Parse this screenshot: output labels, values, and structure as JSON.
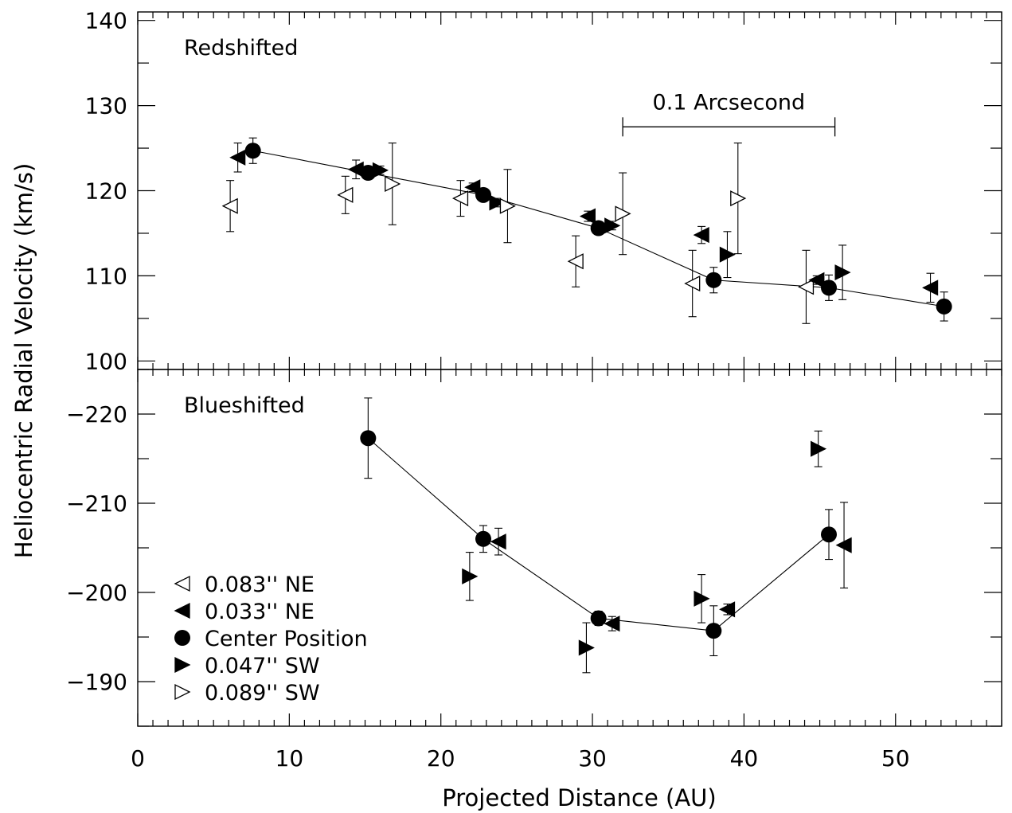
{
  "chart_data": {
    "type": "scatter",
    "xlabel": "Projected Distance (AU)",
    "ylabel": "Heliocentric Radial Velocity (km/s)",
    "xlim": [
      0,
      57
    ],
    "x_ticks": [
      "0",
      "10",
      "20",
      "30",
      "40",
      "50"
    ],
    "legend_placement": "lower-left of blueshifted panel",
    "legend": [
      {
        "marker": "open-left-triangle",
        "label": "0.083'' NE"
      },
      {
        "marker": "filled-left-triangle",
        "label": "0.033'' NE"
      },
      {
        "marker": "filled-circle",
        "label": "Center Position"
      },
      {
        "marker": "filled-right-triangle",
        "label": "0.047'' SW"
      },
      {
        "marker": "open-right-triangle",
        "label": "0.089'' SW"
      }
    ],
    "panels": [
      {
        "name": "Redshifted",
        "ylim": [
          99,
          141
        ],
        "y_ticks": [
          "100",
          "110",
          "120",
          "130",
          "140"
        ],
        "scale_bar": {
          "label": "0.1 Arcsecond",
          "x": [
            32,
            46
          ],
          "y": 127.5
        },
        "connected_series": "center",
        "series": [
          {
            "key": "ne083",
            "marker": "open-left-triangle",
            "points": [
              [
                6.1,
                118.2,
                3.0
              ],
              [
                13.7,
                119.5,
                2.2
              ],
              [
                21.3,
                119.1,
                2.1
              ],
              [
                28.9,
                111.7,
                3.0
              ],
              [
                36.6,
                109.1,
                3.9
              ],
              [
                44.1,
                108.7,
                4.3
              ]
            ]
          },
          {
            "key": "ne033",
            "marker": "filled-left-triangle",
            "points": [
              [
                6.6,
                123.9,
                1.7
              ],
              [
                14.4,
                122.5,
                1.1
              ],
              [
                22.1,
                120.4,
                0.5
              ],
              [
                29.7,
                117.0,
                0.6
              ],
              [
                37.2,
                114.8,
                1.0
              ],
              [
                44.8,
                109.5,
                0.5
              ],
              [
                52.3,
                108.6,
                1.7
              ]
            ]
          },
          {
            "key": "center",
            "marker": "filled-circle",
            "points": [
              [
                7.6,
                124.7,
                1.5
              ],
              [
                15.2,
                122.1,
                0.5
              ],
              [
                22.8,
                119.5,
                0.5
              ],
              [
                30.4,
                115.6,
                0.7
              ],
              [
                38.0,
                109.5,
                1.5
              ],
              [
                45.6,
                108.6,
                1.5
              ],
              [
                53.2,
                106.4,
                1.7
              ]
            ]
          },
          {
            "key": "sw047",
            "marker": "filled-right-triangle",
            "points": [
              [
                16.0,
                122.4,
                0.5
              ],
              [
                23.7,
                118.6,
                0.5
              ],
              [
                31.3,
                115.9,
                0.5
              ],
              [
                38.9,
                112.5,
                2.7
              ],
              [
                46.5,
                110.4,
                3.2
              ]
            ]
          },
          {
            "key": "sw089",
            "marker": "open-right-triangle",
            "points": [
              [
                16.8,
                120.8,
                4.8
              ],
              [
                24.4,
                118.2,
                4.3
              ],
              [
                32.0,
                117.3,
                4.8
              ],
              [
                39.6,
                119.1,
                6.5
              ]
            ]
          }
        ]
      },
      {
        "name": "Blueshifted",
        "ylim": [
          -185,
          -225
        ],
        "y_ticks": [
          "-220",
          "-210",
          "-200",
          "-190"
        ],
        "connected_series": "center",
        "series": [
          {
            "key": "ne033",
            "marker": "filled-left-triangle",
            "points": [
              [
                23.8,
                -205.7,
                1.5
              ],
              [
                31.3,
                -196.5,
                0.8
              ],
              [
                38.9,
                -198.1,
                0.6
              ],
              [
                46.6,
                -205.3,
                4.8
              ]
            ]
          },
          {
            "key": "center",
            "marker": "filled-circle",
            "points": [
              [
                15.2,
                -217.3,
                4.5
              ],
              [
                22.8,
                -206.0,
                1.5
              ],
              [
                30.4,
                -197.1,
                0.8
              ],
              [
                38.0,
                -195.7,
                2.8
              ],
              [
                45.6,
                -206.5,
                2.8
              ]
            ]
          },
          {
            "key": "sw047",
            "marker": "filled-right-triangle",
            "points": [
              [
                21.9,
                -201.8,
                2.7
              ],
              [
                29.6,
                -193.8,
                2.8
              ],
              [
                37.2,
                -199.3,
                2.7
              ],
              [
                44.9,
                -216.1,
                2.0
              ]
            ]
          }
        ]
      }
    ]
  }
}
